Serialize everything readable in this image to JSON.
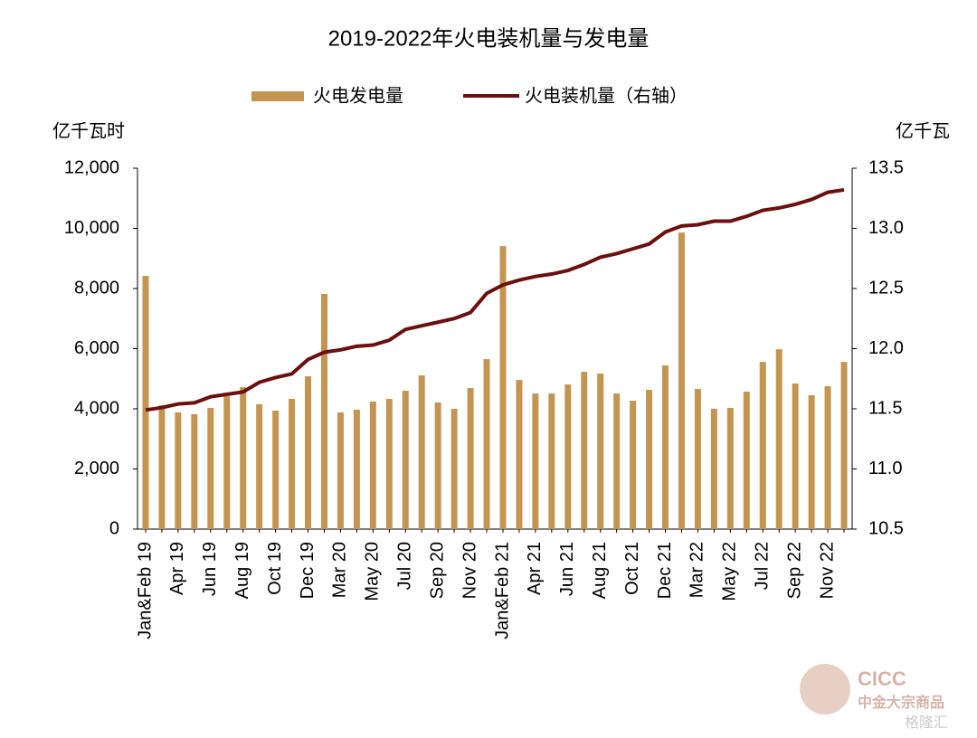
{
  "chart_data": {
    "type": "bar_line",
    "title": "2019-2022年火电装机量与发电量",
    "y_label": "亿千瓦时",
    "y2_label": "亿千瓦",
    "watermark": [
      "CICC",
      "中金大宗商品",
      "格隆汇"
    ],
    "categories": [
      "Jan&Feb 19",
      null,
      "Apr 19",
      null,
      "Jun 19",
      null,
      "Aug 19",
      null,
      "Oct 19",
      null,
      "Dec 19",
      null,
      "Mar 20",
      null,
      "May 20",
      null,
      "Jul 20",
      null,
      "Sep 20",
      null,
      "Nov 20",
      null,
      "Jan&Feb 21",
      null,
      "Apr 21",
      null,
      "Jun 21",
      null,
      "Aug 21",
      null,
      "Oct 21",
      null,
      "Dec 21",
      null,
      "Mar 22",
      null,
      "May 22",
      null,
      "Jul 22",
      null,
      "Sep 22",
      null,
      "Nov 22",
      null
    ],
    "series": [
      {
        "name": "火电发电量",
        "type": "bar",
        "color": "#c49550",
        "values": [
          8420,
          4120,
          3880,
          3820,
          4030,
          4420,
          4720,
          4150,
          3940,
          4330,
          5080,
          7820,
          3880,
          3970,
          4240,
          4330,
          4600,
          5110,
          4210,
          4000,
          4690,
          5650,
          9410,
          4960,
          4510,
          4510,
          4810,
          5230,
          5170,
          4510,
          4270,
          4630,
          5440,
          9860,
          4660,
          4000,
          4030,
          4570,
          5560,
          5980,
          4840,
          4450,
          4750,
          5560
        ]
      },
      {
        "name": "火电装机量（右轴）",
        "type": "line",
        "axis": "y2",
        "color": "#6b0f0f",
        "values": [
          11.49,
          11.51,
          11.54,
          11.55,
          11.6,
          11.62,
          11.64,
          11.72,
          11.76,
          11.79,
          11.91,
          11.97,
          11.99,
          12.02,
          12.03,
          12.07,
          12.16,
          12.19,
          12.22,
          12.25,
          12.3,
          12.46,
          12.53,
          12.57,
          12.6,
          12.62,
          12.65,
          12.7,
          12.76,
          12.79,
          12.83,
          12.87,
          12.97,
          13.02,
          13.03,
          13.06,
          13.06,
          13.1,
          13.15,
          13.17,
          13.2,
          13.24,
          13.3,
          13.32
        ]
      }
    ],
    "ylim": [
      0,
      12000
    ],
    "yticks": [
      0,
      {
        "value": 2000,
        "label": "2,000"
      },
      {
        "value": 4000,
        "label": "4,000"
      },
      {
        "value": 6000,
        "label": "6,000"
      },
      {
        "value": 8000,
        "label": "8,000"
      },
      {
        "value": 10000,
        "label": "10,000"
      },
      {
        "value": 12000,
        "label": "12,000"
      }
    ],
    "y2lim": [
      10.5,
      13.5
    ],
    "y2ticks": [
      10.5,
      {
        "value": 11,
        "label": "11.0"
      },
      11.5,
      {
        "value": 12,
        "label": "12.0"
      },
      12.5,
      {
        "value": 13,
        "label": "13.0"
      },
      13.5
    ],
    "legend": "top"
  }
}
